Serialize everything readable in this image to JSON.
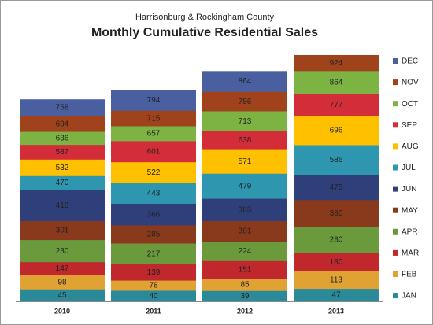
{
  "chart_data": {
    "type": "bar",
    "subtitle": "Harrisonburg & Rockingham County",
    "title": "Monthly Cumulative Residential Sales",
    "categories": [
      "2010",
      "2011",
      "2012",
      "2013"
    ],
    "series": [
      {
        "name": "JAN",
        "color": "#2a8a9a",
        "values": [
          45,
          40,
          39,
          47
        ]
      },
      {
        "name": "FEB",
        "color": "#e0a232",
        "values": [
          98,
          78,
          85,
          113
        ]
      },
      {
        "name": "MAR",
        "color": "#c0282e",
        "values": [
          147,
          139,
          151,
          180
        ]
      },
      {
        "name": "APR",
        "color": "#6a9a3c",
        "values": [
          230,
          217,
          224,
          280
        ]
      },
      {
        "name": "MAY",
        "color": "#8a3a1c",
        "values": [
          301,
          285,
          301,
          380
        ]
      },
      {
        "name": "JUN",
        "color": "#2f3f7a",
        "values": [
          418,
          366,
          385,
          475
        ]
      },
      {
        "name": "JUL",
        "color": "#2f96b0",
        "values": [
          470,
          443,
          479,
          586
        ]
      },
      {
        "name": "AUG",
        "color": "#ffc000",
        "values": [
          532,
          522,
          571,
          696
        ]
      },
      {
        "name": "SEP",
        "color": "#d42d3a",
        "values": [
          587,
          601,
          638,
          777
        ]
      },
      {
        "name": "OCT",
        "color": "#7cb342",
        "values": [
          636,
          657,
          713,
          864
        ]
      },
      {
        "name": "NOV",
        "color": "#a0421c",
        "values": [
          694,
          715,
          786,
          924
        ]
      },
      {
        "name": "DEC",
        "color": "#4a5fa0",
        "values": [
          758,
          794,
          864,
          null
        ]
      }
    ]
  }
}
